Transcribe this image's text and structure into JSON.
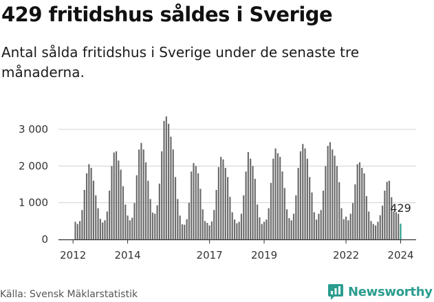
{
  "header": {
    "title": "429 fritidshus såldes i Sverige",
    "subtitle": "Antal sålda fritidshus i Sverige under de senaste tre månaderna."
  },
  "footer": {
    "source": "Källa: Svensk Mäklarstatistik",
    "brand": "Newsworthy"
  },
  "colors": {
    "bar": "#6b6b6b",
    "highlight": "#2a9d8f",
    "axis": "#333333",
    "grid": "#d0d0d0"
  },
  "chart_data": {
    "type": "bar",
    "title": "429 fritidshus såldes i Sverige",
    "subtitle": "Antal sålda fritidshus i Sverige under de senaste tre månaderna.",
    "x_start": "2012-02",
    "x_end": "2024-01",
    "frequency": "monthly",
    "x_ticks": [
      "2012",
      "2014",
      "2017",
      "2019",
      "2022",
      "2024"
    ],
    "y_ticks": [
      0,
      1000,
      2000,
      3000
    ],
    "y_tick_labels": [
      "0",
      "1 000",
      "2 000",
      "3 000"
    ],
    "ylim": [
      0,
      3300
    ],
    "grid": true,
    "annotation": {
      "text": "429",
      "index": 143
    },
    "highlight_index": 143,
    "values": [
      480,
      420,
      500,
      800,
      1350,
      1800,
      2050,
      1950,
      1600,
      1200,
      850,
      560,
      460,
      520,
      760,
      1330,
      2000,
      2370,
      2400,
      2150,
      1900,
      1450,
      950,
      650,
      520,
      590,
      990,
      1750,
      2450,
      2630,
      2450,
      2100,
      1600,
      1100,
      730,
      700,
      930,
      1520,
      2400,
      3230,
      3350,
      3150,
      2800,
      2450,
      1700,
      1100,
      650,
      410,
      400,
      550,
      1000,
      1850,
      2080,
      2000,
      1800,
      1380,
      820,
      500,
      450,
      380,
      490,
      800,
      1350,
      1970,
      2250,
      2180,
      1950,
      1700,
      1160,
      740,
      540,
      440,
      480,
      700,
      1200,
      1850,
      2380,
      2200,
      2000,
      1650,
      950,
      600,
      420,
      480,
      540,
      850,
      1540,
      2200,
      2480,
      2350,
      2250,
      1850,
      1400,
      820,
      580,
      520,
      700,
      1200,
      1950,
      2400,
      2600,
      2480,
      2200,
      1700,
      1280,
      740,
      540,
      700,
      800,
      1330,
      2000,
      2550,
      2650,
      2450,
      2280,
      2000,
      1560,
      850,
      550,
      620,
      520,
      700,
      990,
      1500,
      2050,
      2100,
      1950,
      1800,
      1180,
      760,
      500,
      420,
      380,
      480,
      660,
      920,
      1330,
      1570,
      1600,
      1150,
      760,
      740,
      700,
      429
    ]
  }
}
